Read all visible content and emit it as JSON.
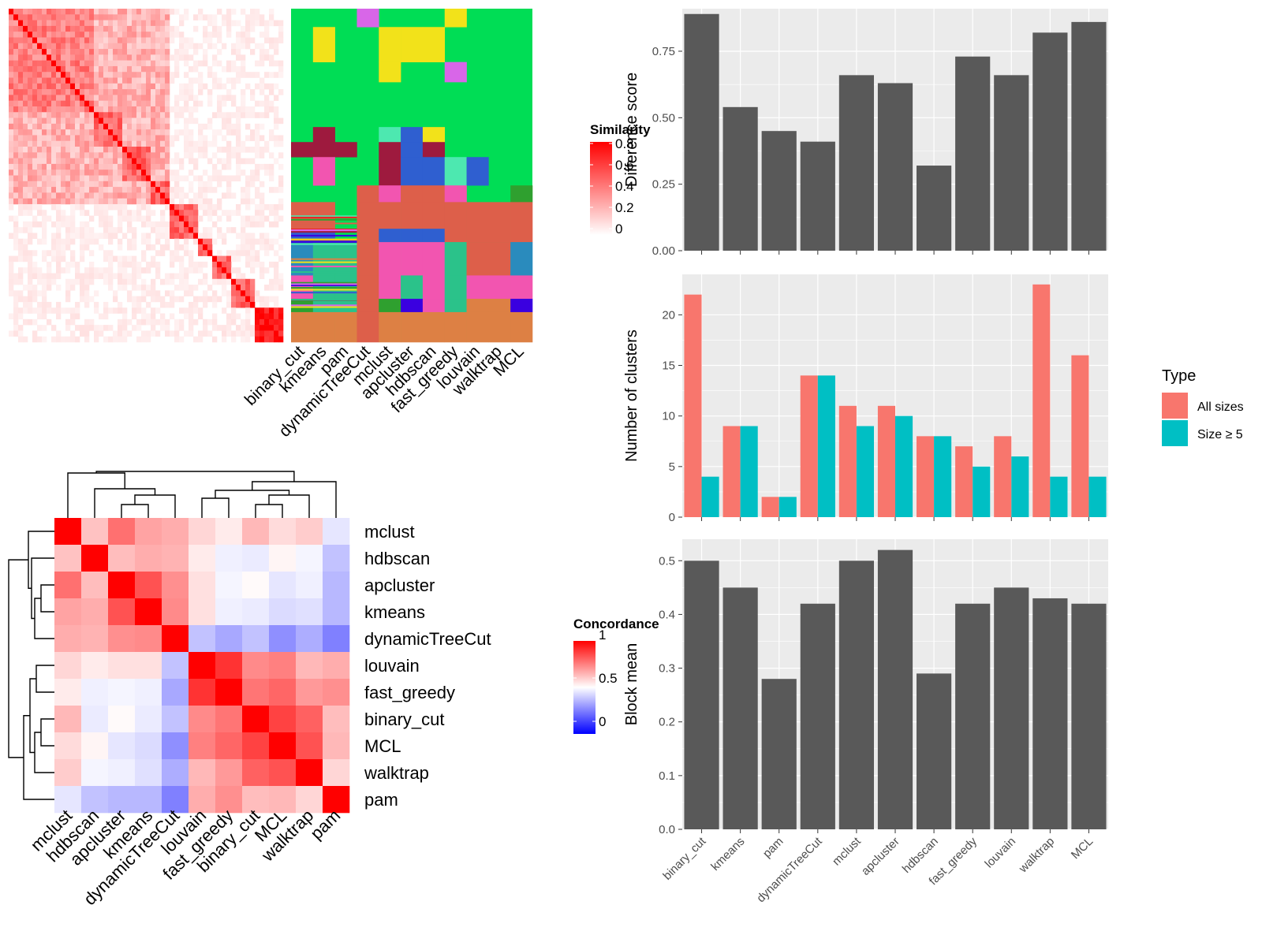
{
  "chart_data": [
    {
      "type": "heatmap",
      "id": "similarity",
      "legend_title": "Similarity",
      "legend_ticks": [
        "0",
        "0.2",
        "0.4",
        "0.6",
        "0.8"
      ],
      "legend_colors": [
        "#ffffff",
        "#ff0000"
      ],
      "methods": [
        "binary_cut",
        "kmeans",
        "pam",
        "dynamicTreeCut",
        "mclust",
        "apcluster",
        "hdbscan",
        "fast_greedy",
        "louvain",
        "walktrap",
        "MCL"
      ]
    },
    {
      "type": "heatmap",
      "id": "concordance",
      "legend_title": "Concordance",
      "legend_ticks": [
        "1",
        "0.5",
        "0"
      ],
      "legend_colors": [
        "#0000ff",
        "#ffffff",
        "#ff0000"
      ],
      "rows": [
        "mclust",
        "hdbscan",
        "apcluster",
        "kmeans",
        "dynamicTreeCut",
        "louvain",
        "fast_greedy",
        "binary_cut",
        "MCL",
        "walktrap",
        "pam"
      ],
      "cols": [
        "mclust",
        "hdbscan",
        "apcluster",
        "kmeans",
        "dynamicTreeCut",
        "louvain",
        "fast_greedy",
        "binary_cut",
        "MCL",
        "walktrap",
        "pam"
      ],
      "values": [
        [
          1.0,
          0.62,
          0.78,
          0.68,
          0.66,
          0.58,
          0.54,
          0.64,
          0.57,
          0.6,
          0.45
        ],
        [
          0.62,
          1.0,
          0.63,
          0.66,
          0.65,
          0.54,
          0.47,
          0.46,
          0.52,
          0.48,
          0.38
        ],
        [
          0.78,
          0.63,
          1.0,
          0.84,
          0.72,
          0.56,
          0.48,
          0.51,
          0.45,
          0.47,
          0.36
        ],
        [
          0.68,
          0.66,
          0.84,
          1.0,
          0.73,
          0.56,
          0.47,
          0.46,
          0.43,
          0.44,
          0.36
        ],
        [
          0.66,
          0.65,
          0.72,
          0.73,
          1.0,
          0.38,
          0.33,
          0.38,
          0.28,
          0.34,
          0.25
        ],
        [
          0.58,
          0.54,
          0.56,
          0.56,
          0.38,
          1.0,
          0.9,
          0.73,
          0.75,
          0.64,
          0.66
        ],
        [
          0.54,
          0.47,
          0.48,
          0.47,
          0.33,
          0.9,
          1.0,
          0.77,
          0.8,
          0.7,
          0.72
        ],
        [
          0.64,
          0.46,
          0.51,
          0.46,
          0.38,
          0.73,
          0.77,
          1.0,
          0.87,
          0.81,
          0.63
        ],
        [
          0.57,
          0.52,
          0.45,
          0.43,
          0.28,
          0.75,
          0.8,
          0.87,
          1.0,
          0.84,
          0.64
        ],
        [
          0.6,
          0.48,
          0.47,
          0.44,
          0.34,
          0.64,
          0.7,
          0.81,
          0.84,
          1.0,
          0.58
        ],
        [
          0.45,
          0.38,
          0.36,
          0.36,
          0.25,
          0.66,
          0.72,
          0.63,
          0.64,
          0.58,
          1.0
        ]
      ]
    },
    {
      "type": "bar",
      "id": "difference",
      "categories": [
        "binary_cut",
        "kmeans",
        "pam",
        "dynamicTreeCut",
        "mclust",
        "apcluster",
        "hdbscan",
        "fast_greedy",
        "louvain",
        "walktrap",
        "MCL"
      ],
      "values": [
        0.89,
        0.54,
        0.45,
        0.41,
        0.66,
        0.63,
        0.32,
        0.73,
        0.66,
        0.82,
        0.86
      ],
      "ylabel": "Difference score",
      "ylim": [
        0,
        0.91
      ],
      "yticks": [
        0,
        0.25,
        0.5,
        0.75
      ],
      "ytick_labels": [
        "0.00",
        "0.25",
        "0.50",
        "0.75"
      ],
      "grid": true
    },
    {
      "type": "bar",
      "id": "clusters",
      "categories": [
        "binary_cut",
        "kmeans",
        "pam",
        "dynamicTreeCut",
        "mclust",
        "apcluster",
        "hdbscan",
        "fast_greedy",
        "louvain",
        "walktrap",
        "MCL"
      ],
      "series": [
        {
          "name": "All sizes",
          "values": [
            22,
            9,
            2,
            14,
            11,
            11,
            8,
            7,
            8,
            23,
            16
          ]
        },
        {
          "name": "Size ≥ 5",
          "values": [
            4,
            9,
            2,
            14,
            9,
            10,
            8,
            5,
            6,
            4,
            4
          ]
        }
      ],
      "ylabel": "Number of clusters",
      "ylim": [
        0,
        24
      ],
      "yticks": [
        0,
        5,
        10,
        15,
        20
      ],
      "ytick_labels": [
        "0",
        "5",
        "10",
        "15",
        "20"
      ],
      "legend_title": "Type",
      "legend_position": "right",
      "colors": [
        "#f8766d",
        "#00bfc4"
      ],
      "grid": true
    },
    {
      "type": "bar",
      "id": "blockmean",
      "categories": [
        "binary_cut",
        "kmeans",
        "pam",
        "dynamicTreeCut",
        "mclust",
        "apcluster",
        "hdbscan",
        "fast_greedy",
        "louvain",
        "walktrap",
        "MCL"
      ],
      "values": [
        0.5,
        0.45,
        0.28,
        0.42,
        0.5,
        0.52,
        0.29,
        0.42,
        0.45,
        0.43,
        0.42
      ],
      "ylabel": "Block mean",
      "ylim": [
        0,
        0.54
      ],
      "yticks": [
        0,
        0.1,
        0.2,
        0.3,
        0.4,
        0.5
      ],
      "ytick_labels": [
        "0.0",
        "0.1",
        "0.2",
        "0.3",
        "0.4",
        "0.5"
      ],
      "grid": true
    }
  ],
  "colors": {
    "panel_bg": "#ebebeb",
    "grid": "#ffffff",
    "bar": "#595959",
    "axis_text": "#4d4d4d"
  }
}
